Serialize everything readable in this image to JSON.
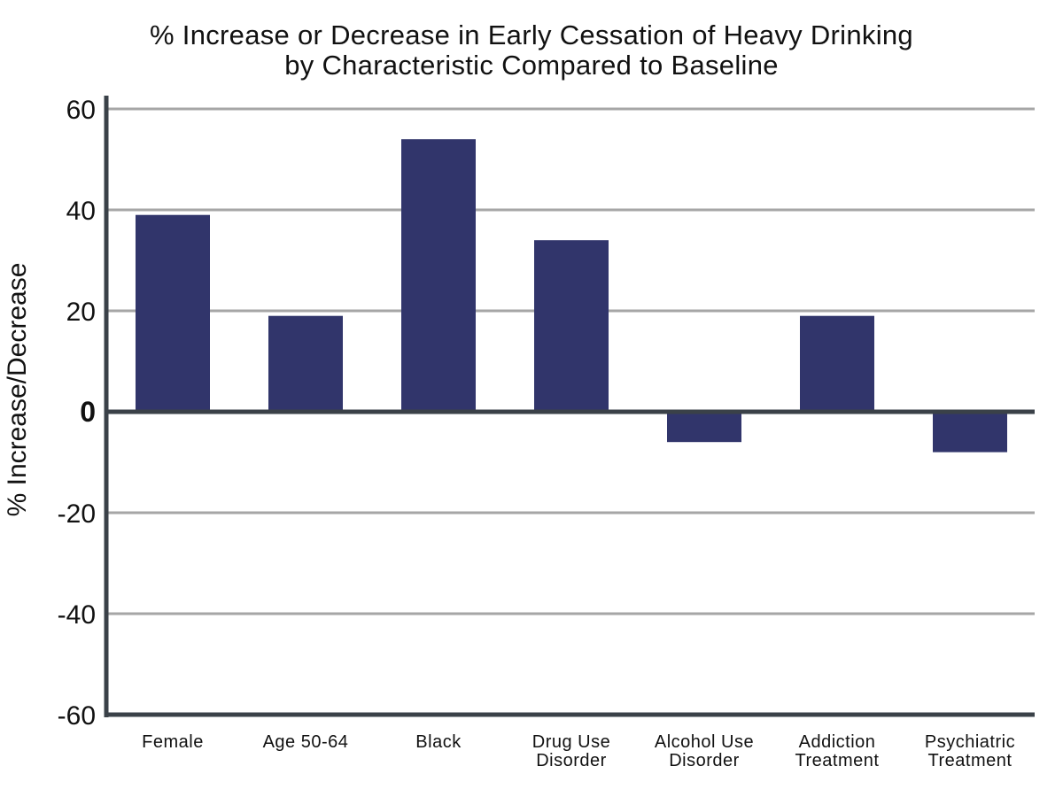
{
  "title_line1": "% Increase or Decrease in Early Cessation of Heavy Drinking",
  "title_line2": "by Characteristic Compared to Baseline",
  "chart_data": {
    "type": "bar",
    "title": "% Increase or Decrease in Early Cessation of Heavy Drinking by Characteristic Compared to Baseline",
    "xlabel": "",
    "ylabel": "% Increase/Decrease",
    "ylim": [
      -60,
      60
    ],
    "yticks": [
      60,
      40,
      20,
      0,
      -20,
      -40,
      -60
    ],
    "ytick_labels": [
      "60",
      "40",
      "20",
      "0",
      "-20",
      "-40",
      "-60"
    ],
    "categories": [
      [
        "Female"
      ],
      [
        "Age 50-64"
      ],
      [
        "Black"
      ],
      [
        "Drug Use",
        "Disorder"
      ],
      [
        "Alcohol Use",
        "Disorder"
      ],
      [
        "Addiction",
        "Treatment"
      ],
      [
        "Psychiatric",
        "Treatment"
      ]
    ],
    "values": [
      39,
      19,
      54,
      34,
      -6,
      19,
      -8
    ],
    "grid": true,
    "bar_color": "#31356b",
    "axis_color": "#3a4148",
    "grid_color": "#a6a6a6"
  }
}
